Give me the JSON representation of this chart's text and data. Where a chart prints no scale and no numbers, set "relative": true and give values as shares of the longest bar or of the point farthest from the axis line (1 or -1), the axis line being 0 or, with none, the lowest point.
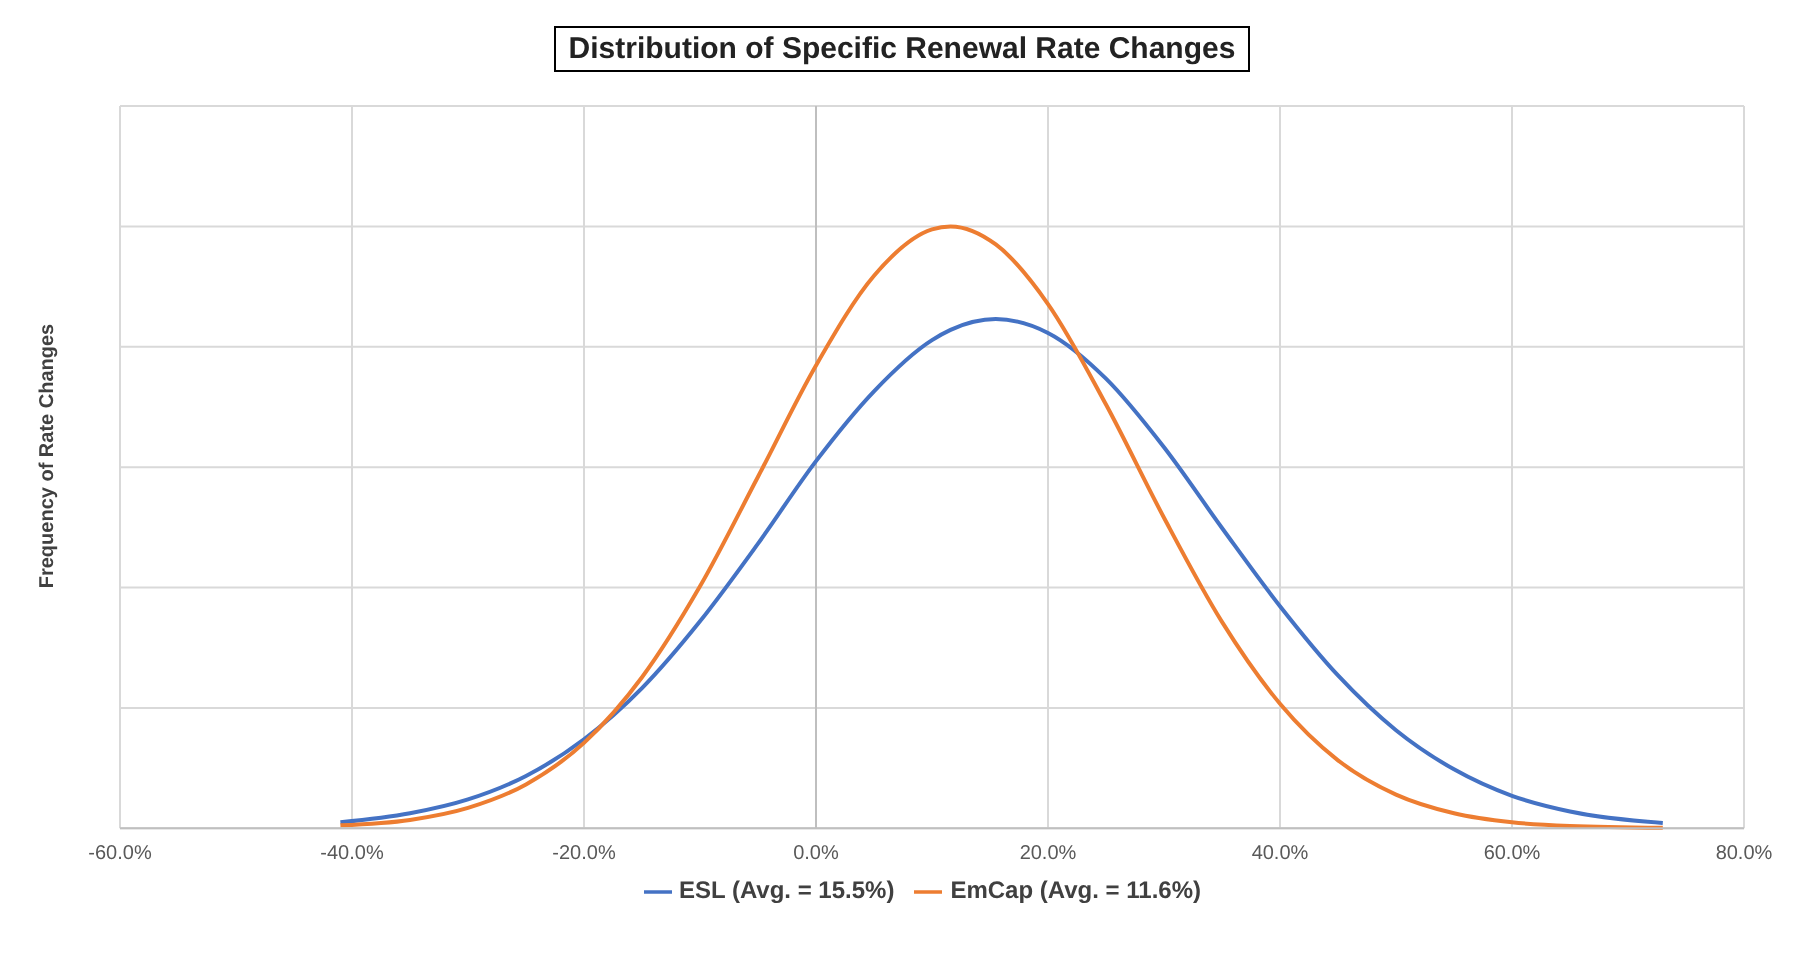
{
  "chart_data": {
    "type": "line",
    "title": "Distribution of Specific Renewal Rate Changes",
    "ylabel": "Frequency of Rate Changes",
    "relative": true,
    "x": [
      -41,
      -35,
      -30,
      -25,
      -20,
      -15,
      -10,
      -5,
      0,
      5,
      10,
      11.6,
      15.5,
      20,
      25,
      30,
      35,
      40,
      45,
      50,
      55,
      60,
      65,
      73
    ],
    "series": [
      {
        "name": "ESL (Avg. = 15.5%)",
        "color": "#4472c4",
        "values": [
          0.01,
          0.025,
          0.048,
          0.087,
          0.148,
          0.233,
          0.344,
          0.473,
          0.61,
          0.726,
          0.811,
          0.828,
          0.846,
          0.823,
          0.747,
          0.633,
          0.499,
          0.369,
          0.254,
          0.163,
          0.098,
          0.054,
          0.028,
          0.009
        ]
      },
      {
        "name": "EmCap (Avg. = 11.6%)",
        "color": "#ed7d31",
        "values": [
          0.005,
          0.014,
          0.034,
          0.073,
          0.142,
          0.251,
          0.402,
          0.584,
          0.769,
          0.918,
          0.995,
          1,
          0.97,
          0.871,
          0.704,
          0.516,
          0.343,
          0.207,
          0.113,
          0.056,
          0.025,
          0.01,
          0.004,
          0.001
        ]
      }
    ],
    "xlim": [
      -60,
      80
    ],
    "xticks": [
      {
        "value": -60,
        "label": "-60.0%"
      },
      {
        "value": -40,
        "label": "-40.0%"
      },
      {
        "value": -20,
        "label": "-20.0%"
      },
      {
        "value": 0,
        "label": "0.0%"
      },
      {
        "value": 20,
        "label": "20.0%"
      },
      {
        "value": 40,
        "label": "40.0%"
      },
      {
        "value": 60,
        "label": "60.0%"
      },
      {
        "value": 80,
        "label": "80.0%"
      }
    ],
    "ref_lines": [
      {
        "axis": "x",
        "value": 0,
        "color": "#bfbfbf"
      }
    ],
    "grid": true,
    "legend": "bottom",
    "marker": "none",
    "line_style": "solid"
  }
}
